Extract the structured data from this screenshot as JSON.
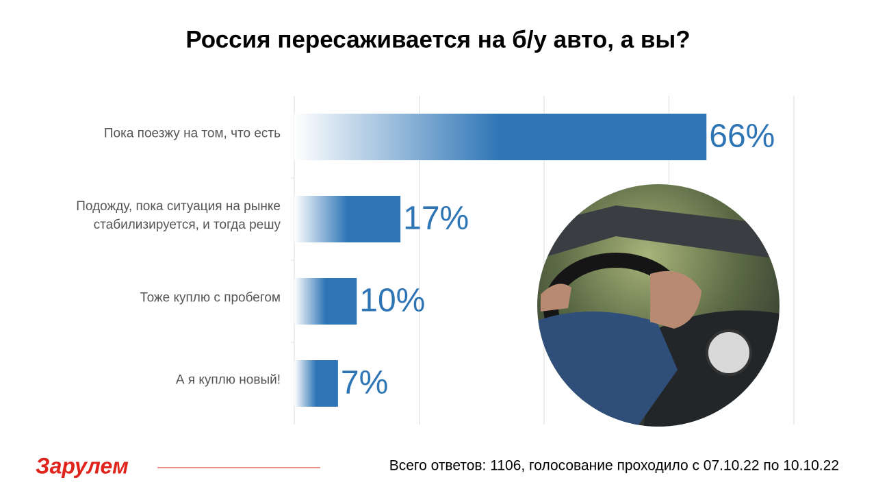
{
  "chart_data": {
    "type": "bar",
    "orientation": "horizontal",
    "title": "Россия пересаживается на б/у авто, а вы?",
    "categories": [
      "Пока поезжу на том, что есть",
      "Подожду, пока ситуация на рынке стабилизируется, и тогда решу",
      "Тоже куплю с пробегом",
      "А я куплю новый!"
    ],
    "values": [
      66,
      17,
      10,
      7
    ],
    "value_labels": [
      "66%",
      "17%",
      "10%",
      "7%"
    ],
    "color": "#2e75b6",
    "xlim": [
      0,
      80
    ],
    "xticks": [
      0,
      20,
      40,
      60,
      80
    ],
    "grid": true
  },
  "footer": {
    "logo": "Зарулем",
    "note": "Всего ответов: 1106, голосование проходило с 07.10.22 по 10.10.22"
  }
}
